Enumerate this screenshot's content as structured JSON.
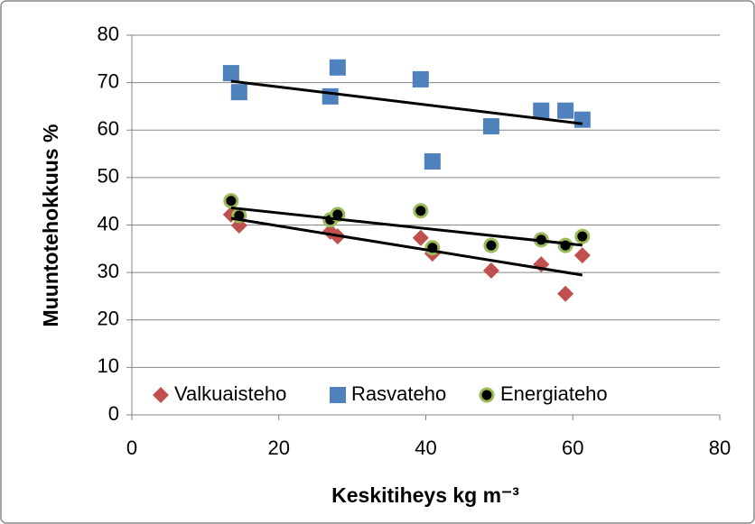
{
  "chart_data": {
    "type": "scatter",
    "xlabel": "Keskitiheys kg m⁻³",
    "ylabel": "Muuntotehokkuus %",
    "x": [
      13.5,
      14.6,
      27.0,
      28.0,
      39.3,
      40.9,
      48.9,
      55.7,
      59.0,
      61.3
    ],
    "series": [
      {
        "name": "Valkuaisteho",
        "color": "#c0504d",
        "marker": "diamond",
        "trendline": true,
        "values": [
          42.2,
          39.9,
          38.6,
          37.6,
          37.3,
          34.0,
          30.4,
          31.7,
          25.5,
          33.6
        ]
      },
      {
        "name": "Rasvateho",
        "color": "#4f81bd",
        "marker": "square",
        "trendline": true,
        "values": [
          72.0,
          68.0,
          67.1,
          73.2,
          70.7,
          53.4,
          60.8,
          64.1,
          64.1,
          62.2
        ]
      },
      {
        "name": "Energiateho",
        "color": "#000000",
        "edge_color": "#9bbb59",
        "marker": "circle",
        "trendline": true,
        "values": [
          45.1,
          42.0,
          41.1,
          42.2,
          43.0,
          35.2,
          35.7,
          36.9,
          35.7,
          37.6
        ]
      }
    ],
    "xlim": [
      0,
      80
    ],
    "xticks": [
      0,
      20,
      40,
      60,
      80
    ],
    "ylim": [
      0,
      80
    ],
    "yticks": [
      0,
      10,
      20,
      30,
      40,
      50,
      60,
      70,
      80
    ],
    "grid": true,
    "legend": "bottom"
  }
}
